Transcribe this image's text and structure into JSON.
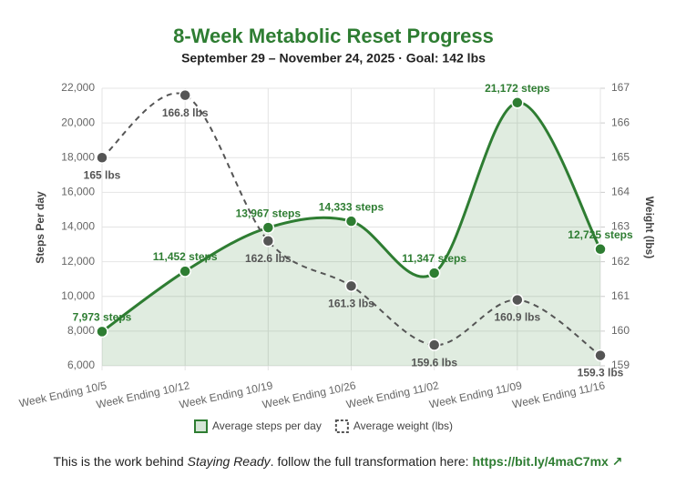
{
  "chart_data": {
    "type": "line",
    "title": "8-Week Metabolic Reset Progress",
    "subtitle": "September 29 – November 24, 2025 · Goal: 142 lbs",
    "y_label": "Steps Per day",
    "y2_label": "Weight (lbs)",
    "categories": [
      "Week Ending 10/5",
      "Week Ending 10/12",
      "Week Ending 10/19",
      "Week Ending 10/26",
      "Week Ending 11/02",
      "Week Ending 11/09",
      "Week Ending 11/16"
    ],
    "series": [
      {
        "name": "Average steps per day",
        "color": "#2e7d32",
        "fill": true,
        "values": [
          7973,
          11452,
          13967,
          14333,
          11347,
          21172,
          12725
        ],
        "value_labels": [
          "7,973 steps",
          "11,452 steps",
          "13,967 steps",
          "14,333 steps",
          "11,347 steps",
          "21,172 steps",
          "12,725 steps"
        ]
      },
      {
        "name": "Average weight (lbs)",
        "color": "#555555",
        "dashed": true,
        "axis": "y2",
        "values": [
          165,
          166.8,
          162.6,
          161.3,
          159.6,
          160.9,
          159.3
        ],
        "value_labels": [
          "165 lbs",
          "166.8 lbs",
          "162.6 lbs",
          "161.3 lbs",
          "159.6 lbs",
          "160.9 lbs",
          "159.3 lbs"
        ]
      }
    ],
    "ylim": [
      6000,
      22000
    ],
    "yticks": [
      {
        "value": 6000,
        "label": "6,000"
      },
      {
        "value": 8000,
        "label": "8,000"
      },
      {
        "value": 10000,
        "label": "10,000"
      },
      {
        "value": 12000,
        "label": "12,000"
      },
      {
        "value": 14000,
        "label": "14,000"
      },
      {
        "value": 16000,
        "label": "16,000"
      },
      {
        "value": 18000,
        "label": "18,000"
      },
      {
        "value": 20000,
        "label": "20,000"
      },
      {
        "value": 22000,
        "label": "22,000"
      }
    ],
    "y2lim": [
      159,
      167
    ],
    "y2ticks": [
      159,
      160,
      161,
      162,
      163,
      164,
      165,
      166,
      167
    ],
    "grid": true,
    "legend": "bottom"
  },
  "footer": {
    "before": "This is the work behind ",
    "emphasis": "Staying Ready",
    "after": ". follow the full transformation here: ",
    "link": "https://bit.ly/4maC7mx ↗"
  }
}
